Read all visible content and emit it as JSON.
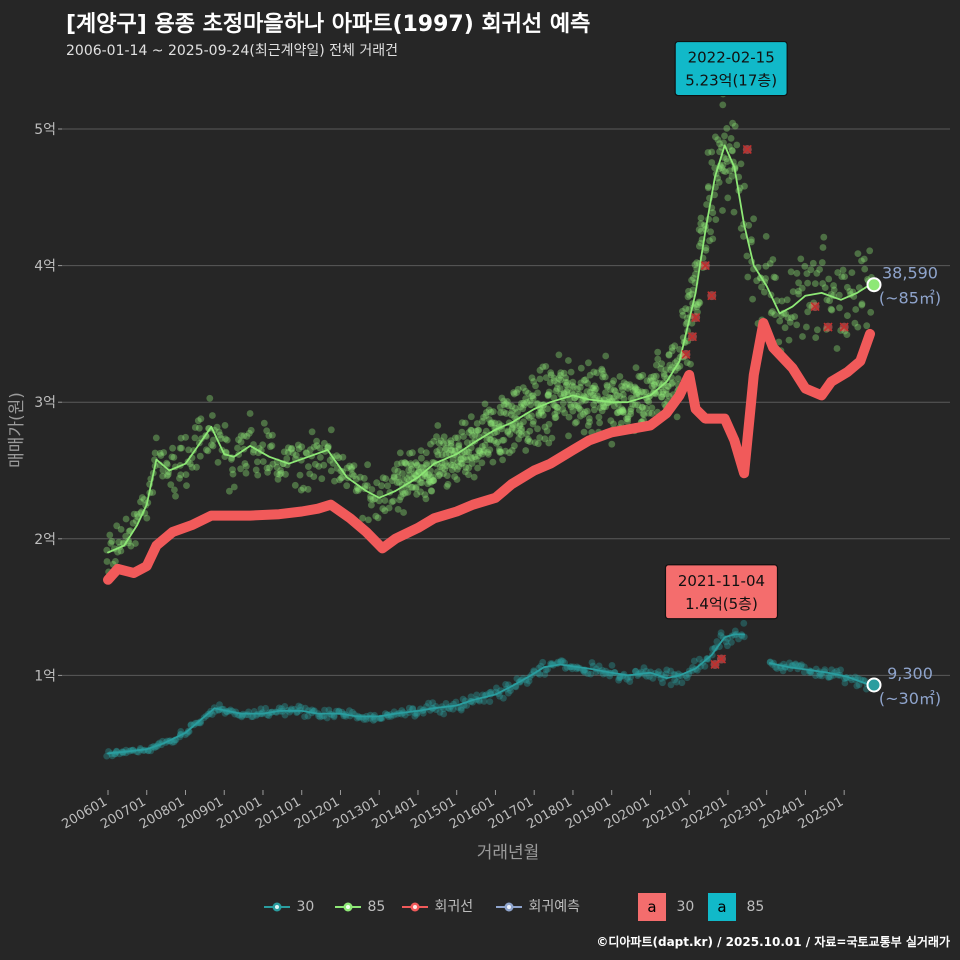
{
  "title": "[계양구] 용종 초정마을하나 아파트(1997) 회귀선 예측",
  "subtitle": "2006-01-14 ~ 2025-09-24(최근계약일) 전체 거래건",
  "footer": "©디아파트(dapt.kr) / 2025.10.01 / 자료=국토교통부 실거래가",
  "colors": {
    "s30": "#2a9d9f",
    "s85": "#8ee876",
    "reg": "#f15a5a",
    "pred": "#8fa4cc",
    "box30": "#f46d6d",
    "box85": "#11b9c9"
  },
  "legend": {
    "items": [
      {
        "label": "30",
        "icon": "teal-point-icon"
      },
      {
        "label": "85",
        "icon": "green-point-icon"
      },
      {
        "label": "회귀선",
        "icon": "red-point-icon"
      },
      {
        "label": "회귀예측",
        "icon": "blue-point-icon"
      }
    ],
    "box_items": [
      {
        "box": "a",
        "label": "30"
      },
      {
        "box": "a",
        "label": "85"
      }
    ]
  },
  "chart_data": {
    "type": "scatter",
    "xlabel": "거래년월",
    "ylabel": "매매가(원)",
    "x_range": [
      "2006-01",
      "2025-12"
    ],
    "ylim": [
      0.1,
      5.5
    ],
    "y_ticks": [
      {
        "value": 1,
        "label": "1억"
      },
      {
        "value": 2,
        "label": "2억"
      },
      {
        "value": 3,
        "label": "3억"
      },
      {
        "value": 4,
        "label": "4억"
      },
      {
        "value": 5,
        "label": "5억"
      }
    ],
    "x_ticks": [
      "200601",
      "200701",
      "200801",
      "200901",
      "201001",
      "201101",
      "201201",
      "201301",
      "201401",
      "201501",
      "201601",
      "201701",
      "201801",
      "201901",
      "202001",
      "202101",
      "202201",
      "202301",
      "202401",
      "202501"
    ],
    "series": [
      {
        "name": "85",
        "unit": "억",
        "trend": [
          [
            "2006-01",
            1.9
          ],
          [
            "2006-06",
            1.95
          ],
          [
            "2006-10",
            2.1
          ],
          [
            "2007-01",
            2.25
          ],
          [
            "2007-04",
            2.58
          ],
          [
            "2007-08",
            2.5
          ],
          [
            "2008-01",
            2.55
          ],
          [
            "2008-04",
            2.65
          ],
          [
            "2008-09",
            2.82
          ],
          [
            "2009-01",
            2.62
          ],
          [
            "2009-04",
            2.6
          ],
          [
            "2009-09",
            2.68
          ],
          [
            "2010-03",
            2.6
          ],
          [
            "2010-09",
            2.55
          ],
          [
            "2011-03",
            2.6
          ],
          [
            "2011-09",
            2.65
          ],
          [
            "2012-03",
            2.45
          ],
          [
            "2012-09",
            2.35
          ],
          [
            "2013-01",
            2.3
          ],
          [
            "2013-06",
            2.35
          ],
          [
            "2014-01",
            2.45
          ],
          [
            "2014-06",
            2.55
          ],
          [
            "2015-01",
            2.62
          ],
          [
            "2015-06",
            2.7
          ],
          [
            "2016-01",
            2.8
          ],
          [
            "2016-06",
            2.85
          ],
          [
            "2017-01",
            2.95
          ],
          [
            "2017-06",
            3.0
          ],
          [
            "2018-01",
            3.05
          ],
          [
            "2018-06",
            3.02
          ],
          [
            "2019-01",
            3.0
          ],
          [
            "2019-06",
            3.0
          ],
          [
            "2020-01",
            3.05
          ],
          [
            "2020-06",
            3.15
          ],
          [
            "2020-10",
            3.3
          ],
          [
            "2021-03",
            3.8
          ],
          [
            "2021-06",
            4.25
          ],
          [
            "2021-09",
            4.65
          ],
          [
            "2021-12",
            4.88
          ],
          [
            "2022-03",
            4.72
          ],
          [
            "2022-06",
            4.3
          ],
          [
            "2022-09",
            4.0
          ],
          [
            "2023-01",
            3.85
          ],
          [
            "2023-05",
            3.65
          ],
          [
            "2023-09",
            3.7
          ],
          [
            "2024-01",
            3.78
          ],
          [
            "2024-06",
            3.8
          ],
          [
            "2024-12",
            3.75
          ],
          [
            "2025-05",
            3.8
          ],
          [
            "2025-09",
            3.86
          ]
        ]
      },
      {
        "name": "30",
        "unit": "억",
        "trend": [
          [
            "2006-01",
            0.43
          ],
          [
            "2006-06",
            0.44
          ],
          [
            "2007-01",
            0.46
          ],
          [
            "2007-06",
            0.5
          ],
          [
            "2008-01",
            0.58
          ],
          [
            "2008-06",
            0.68
          ],
          [
            "2008-10",
            0.76
          ],
          [
            "2009-06",
            0.72
          ],
          [
            "2010-01",
            0.72
          ],
          [
            "2010-06",
            0.74
          ],
          [
            "2011-01",
            0.74
          ],
          [
            "2011-06",
            0.72
          ],
          [
            "2012-01",
            0.72
          ],
          [
            "2012-06",
            0.7
          ],
          [
            "2013-01",
            0.7
          ],
          [
            "2013-06",
            0.72
          ],
          [
            "2014-01",
            0.74
          ],
          [
            "2014-06",
            0.76
          ],
          [
            "2015-01",
            0.78
          ],
          [
            "2015-06",
            0.82
          ],
          [
            "2016-01",
            0.86
          ],
          [
            "2016-06",
            0.92
          ],
          [
            "2016-12",
            1.0
          ],
          [
            "2017-04",
            1.06
          ],
          [
            "2017-09",
            1.08
          ],
          [
            "2018-06",
            1.05
          ],
          [
            "2019-01",
            1.02
          ],
          [
            "2019-06",
            1.0
          ],
          [
            "2020-01",
            1.02
          ],
          [
            "2020-06",
            0.98
          ],
          [
            "2020-10",
            1.0
          ],
          [
            "2021-03",
            1.05
          ],
          [
            "2021-08",
            1.15
          ],
          [
            "2021-12",
            1.28
          ],
          [
            "2022-03",
            1.3
          ],
          [
            "2022-06",
            1.3
          ],
          null,
          [
            "2023-02",
            1.09
          ],
          [
            "2023-08",
            1.06
          ],
          [
            "2024-02",
            1.04
          ],
          [
            "2024-08",
            1.02
          ],
          [
            "2025-02",
            0.99
          ],
          [
            "2025-09",
            0.93
          ]
        ]
      },
      {
        "name": "회귀선",
        "unit": "억",
        "trend": [
          [
            "2006-01",
            1.7
          ],
          [
            "2006-04",
            1.78
          ],
          [
            "2006-09",
            1.75
          ],
          [
            "2007-01",
            1.8
          ],
          [
            "2007-04",
            1.95
          ],
          [
            "2007-09",
            2.05
          ],
          [
            "2008-03",
            2.1
          ],
          [
            "2008-09",
            2.17
          ],
          [
            "2009-03",
            2.17
          ],
          [
            "2009-09",
            2.17
          ],
          [
            "2010-06",
            2.18
          ],
          [
            "2011-01",
            2.2
          ],
          [
            "2011-06",
            2.22
          ],
          [
            "2011-10",
            2.25
          ],
          [
            "2012-04",
            2.15
          ],
          [
            "2012-09",
            2.05
          ],
          [
            "2013-02",
            1.93
          ],
          [
            "2013-06",
            2.0
          ],
          [
            "2014-01",
            2.08
          ],
          [
            "2014-06",
            2.15
          ],
          [
            "2015-01",
            2.2
          ],
          [
            "2015-06",
            2.25
          ],
          [
            "2016-01",
            2.3
          ],
          [
            "2016-06",
            2.4
          ],
          [
            "2017-01",
            2.5
          ],
          [
            "2017-06",
            2.55
          ],
          [
            "2018-01",
            2.65
          ],
          [
            "2018-06",
            2.72
          ],
          [
            "2019-01",
            2.78
          ],
          [
            "2019-06",
            2.8
          ],
          [
            "2020-01",
            2.83
          ],
          [
            "2020-06",
            2.92
          ],
          [
            "2020-10",
            3.05
          ],
          [
            "2021-01",
            3.2
          ],
          [
            "2021-03",
            2.95
          ],
          [
            "2021-06",
            2.88
          ],
          [
            "2021-12",
            2.88
          ],
          [
            "2022-03",
            2.72
          ],
          [
            "2022-06",
            2.48
          ],
          [
            "2022-09",
            3.2
          ],
          [
            "2022-12",
            3.58
          ],
          [
            "2023-03",
            3.4
          ],
          [
            "2023-09",
            3.25
          ],
          [
            "2024-01",
            3.1
          ],
          [
            "2024-06",
            3.05
          ],
          [
            "2024-09",
            3.15
          ],
          [
            "2025-02",
            3.22
          ],
          [
            "2025-06",
            3.3
          ],
          [
            "2025-09",
            3.5
          ]
        ]
      }
    ],
    "regression_x_points": [
      [
        "2020-12",
        3.35
      ],
      [
        "2021-03",
        3.62
      ],
      [
        "2021-06",
        4.0
      ],
      [
        "2021-08",
        3.78
      ],
      [
        "2022-07",
        4.85
      ],
      [
        "2024-04",
        3.7
      ],
      [
        "2024-08",
        3.55
      ],
      [
        "2025-01",
        3.55
      ],
      [
        "2021-09",
        1.08
      ],
      [
        "2021-11",
        1.12
      ],
      [
        "2021-02",
        3.48
      ]
    ],
    "annotations": [
      {
        "date": "2022-02-15",
        "price": "5.23억(17층)",
        "series": "85",
        "x": "2022-02",
        "y": 5.23
      },
      {
        "date": "2021-11-04",
        "price": "1.4억(5층)",
        "series": "30",
        "x": "2021-11",
        "y": 1.4
      }
    ],
    "end_labels": [
      {
        "value": "38,590",
        "area": "(~85㎡)",
        "x": "2025-09",
        "y": 3.86
      },
      {
        "value": "9,300",
        "area": "(~30㎡)",
        "x": "2025-09",
        "y": 0.93
      }
    ],
    "legend_position": "bottom",
    "grid": true
  }
}
